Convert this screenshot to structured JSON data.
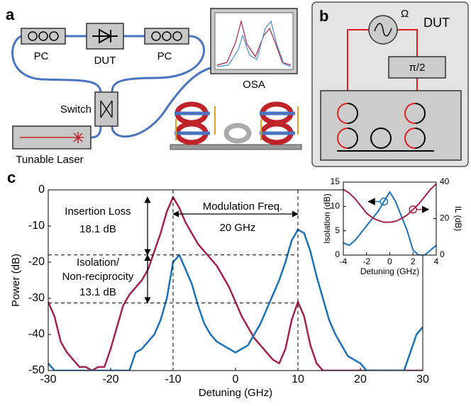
{
  "panel_a": {
    "label": "a",
    "pc_left": "PC",
    "dut": "DUT",
    "pc_right": "PC",
    "osa": "OSA",
    "switch": "Switch",
    "laser": "Tunable Laser"
  },
  "panel_b": {
    "label": "b",
    "omega": "Ω",
    "dut": "DUT",
    "phase": "π/2"
  },
  "panel_c": {
    "label": "c"
  },
  "chart_data": [
    {
      "type": "line",
      "x_label": "Detuning (GHz)",
      "y_label": "Power (dB)",
      "xlim": [
        -30,
        30
      ],
      "ylim": [
        -50,
        0
      ],
      "xticks": [
        -30,
        -20,
        -10,
        0,
        10,
        20,
        30
      ],
      "yticks": [
        0,
        -10,
        -20,
        -30,
        -40,
        -50
      ],
      "x": [
        -30,
        -29,
        -28,
        -27,
        -26,
        -25,
        -24,
        -23,
        -22,
        -21,
        -20,
        -19,
        -18,
        -17,
        -16,
        -15,
        -14,
        -13,
        -12,
        -11,
        -10,
        -9,
        -8,
        -7,
        -6,
        -5,
        -4,
        -3,
        -2,
        -1,
        0,
        1,
        2,
        3,
        4,
        5,
        6,
        7,
        8,
        9,
        10,
        11,
        12,
        13,
        14,
        15,
        16,
        17,
        18,
        19,
        20,
        21,
        22,
        23,
        24,
        25,
        26,
        27,
        28,
        29,
        30
      ],
      "series": [
        {
          "color": "#a3234a",
          "values": [
            -31,
            -35,
            -42,
            -45,
            -47,
            -49,
            -49,
            -50,
            -49,
            -49,
            -44,
            -38,
            -32,
            -29,
            -27,
            -25,
            -22,
            -17,
            -12,
            -6,
            -2,
            -5,
            -9,
            -12,
            -15,
            -17,
            -19,
            -21,
            -24,
            -27,
            -31,
            -35,
            -38,
            -41,
            -43,
            -45,
            -47,
            -48,
            -44,
            -36,
            -31,
            -35,
            -43,
            -48,
            -50,
            -50,
            -50,
            -50,
            -50,
            -50,
            -50,
            -50,
            -50,
            -50,
            -50,
            -50,
            -50,
            -50,
            -50,
            -50,
            -50
          ]
        },
        {
          "color": "#1a72b8",
          "values": [
            -48,
            -50,
            -50,
            -50,
            -50,
            -50,
            -50,
            -50,
            -50,
            -50,
            -50,
            -50,
            -50,
            -50,
            -45,
            -44,
            -42,
            -40,
            -36,
            -30,
            -20,
            -18,
            -22,
            -26,
            -32,
            -37,
            -40,
            -42,
            -43,
            -44,
            -45,
            -44,
            -43,
            -40,
            -37,
            -33,
            -29,
            -25,
            -20,
            -14,
            -11,
            -12,
            -17,
            -24,
            -30,
            -36,
            -40,
            -43,
            -46,
            -47,
            -48,
            -50,
            -50,
            -50,
            -50,
            -50,
            -50,
            -50,
            -45,
            -40,
            -38
          ]
        }
      ],
      "hlines": [
        -18,
        -31.3
      ],
      "vlines": [
        -10,
        10
      ],
      "annotations": {
        "insertion_loss": "Insertion Loss",
        "insertion_value": "18.1 dB",
        "isolation": "Isolation/",
        "nonreciprocity": "Non-reciprocity",
        "isolation_value": "13.1 dB",
        "modulation": "Modulation Freq.",
        "modulation_value": "20 GHz"
      }
    },
    {
      "type": "line",
      "x_label": "Detuning (GHz)",
      "y_label": "Isolation (dB)",
      "y2_label": "IL (dB)",
      "xlim": [
        -4,
        4
      ],
      "ylim": [
        0,
        15
      ],
      "y2lim": [
        0,
        40
      ],
      "xticks": [
        -4,
        -2,
        0,
        2,
        4
      ],
      "yticks": [
        0,
        5,
        10,
        15
      ],
      "y2ticks": [
        0,
        20,
        40
      ],
      "x": [
        -4,
        -3.5,
        -3,
        -2.5,
        -2,
        -1.5,
        -1,
        -0.5,
        0,
        0.5,
        1,
        1.5,
        2,
        2.5,
        3,
        3.5,
        4
      ],
      "series": [
        {
          "color": "#1a72b8",
          "values": [
            2.5,
            2,
            3,
            4.5,
            6,
            7.5,
            9,
            11,
            13,
            11,
            8,
            5,
            1,
            0,
            0,
            1,
            2
          ]
        },
        {
          "color": "#a3234a",
          "axis": "y2",
          "values": [
            36,
            34,
            31,
            27,
            23,
            20.5,
            19,
            18,
            18,
            18.5,
            20,
            22,
            25,
            28,
            32,
            36,
            39
          ]
        }
      ]
    }
  ]
}
